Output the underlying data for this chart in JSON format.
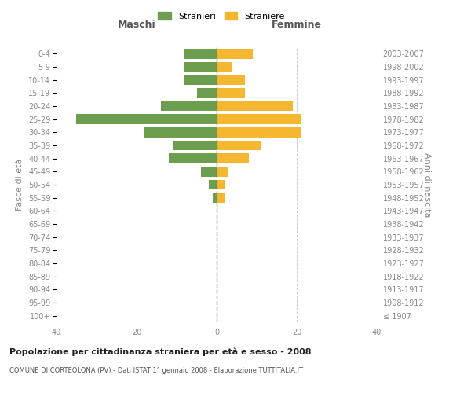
{
  "age_groups": [
    "100+",
    "95-99",
    "90-94",
    "85-89",
    "80-84",
    "75-79",
    "70-74",
    "65-69",
    "60-64",
    "55-59",
    "50-54",
    "45-49",
    "40-44",
    "35-39",
    "30-34",
    "25-29",
    "20-24",
    "15-19",
    "10-14",
    "5-9",
    "0-4"
  ],
  "birth_years": [
    "≤ 1907",
    "1908-1912",
    "1913-1917",
    "1918-1922",
    "1923-1927",
    "1928-1932",
    "1933-1937",
    "1938-1942",
    "1943-1947",
    "1948-1952",
    "1953-1957",
    "1958-1962",
    "1963-1967",
    "1968-1972",
    "1973-1977",
    "1978-1982",
    "1983-1987",
    "1988-1992",
    "1993-1997",
    "1998-2002",
    "2003-2007"
  ],
  "males": [
    0,
    0,
    0,
    0,
    0,
    0,
    0,
    0,
    0,
    1,
    2,
    4,
    12,
    11,
    18,
    35,
    14,
    5,
    8,
    8,
    8
  ],
  "females": [
    0,
    0,
    0,
    0,
    0,
    0,
    0,
    0,
    0,
    2,
    2,
    3,
    8,
    11,
    21,
    21,
    19,
    7,
    7,
    4,
    9
  ],
  "male_color": "#6d9e4f",
  "female_color": "#f5b730",
  "title": "Popolazione per cittadinanza straniera per età e sesso - 2008",
  "subtitle": "COMUNE DI CORTEOLONA (PV) - Dati ISTAT 1° gennaio 2008 - Elaborazione TUTTITALIA.IT",
  "left_header": "Maschi",
  "right_header": "Femmine",
  "ylabel_left": "Fasce di età",
  "ylabel_right": "Anni di nascita",
  "legend_male": "Stranieri",
  "legend_female": "Straniere",
  "xlim": 40,
  "background_color": "#ffffff",
  "grid_color": "#cccccc",
  "tick_color": "#888888",
  "bar_height": 0.75
}
